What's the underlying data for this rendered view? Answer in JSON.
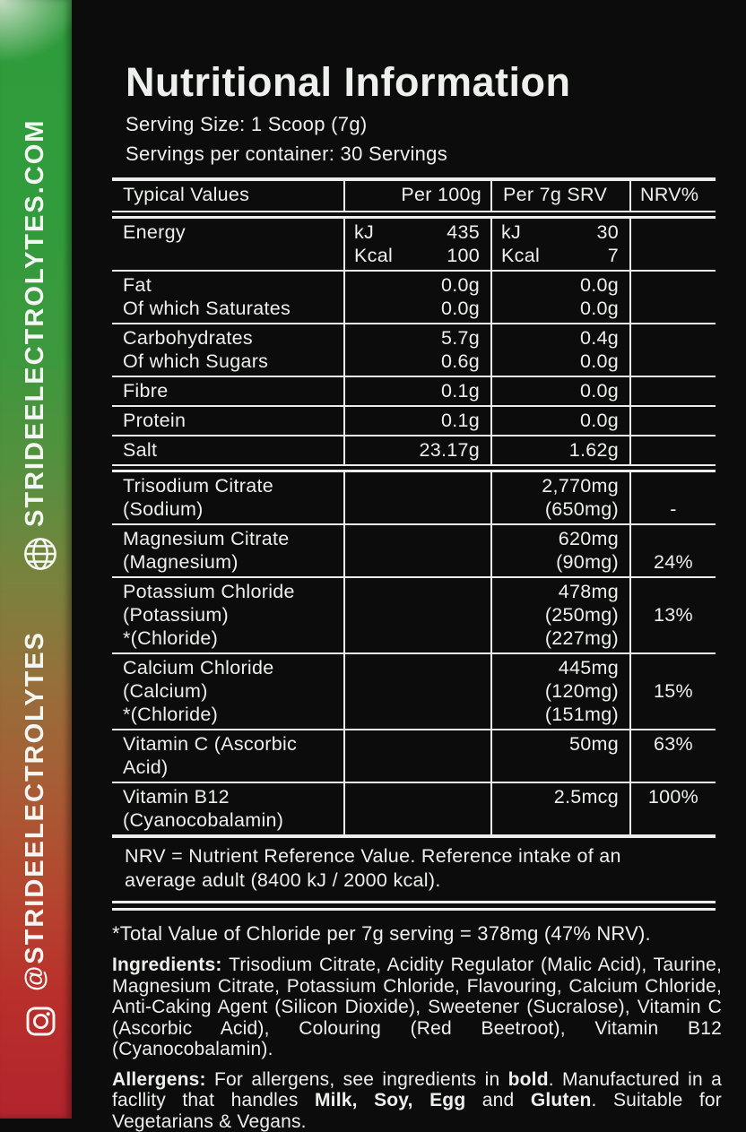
{
  "sidebar": {
    "website_text": "STRIDEELECTROLYTES.COM",
    "instagram_text": "@STRIDEELECTROLYTES",
    "gradient_top_color": "#2f9c3c",
    "gradient_mid_color": "#966f3a",
    "gradient_bottom_color": "#b2242d",
    "icons": [
      "globe-icon",
      "instagram-icon"
    ]
  },
  "header": {
    "title": "Nutritional Information",
    "serving_size": "Serving Size: 1 Scoop (7g)",
    "servings_per_container": "Servings per container: 30 Servings"
  },
  "table": {
    "headers": [
      "Typical Values",
      "Per 100g",
      "Per 7g SRV",
      "NRV%"
    ],
    "line_color": "#ececec",
    "rows": [
      {
        "label": [
          "Energy"
        ],
        "per100": [
          {
            "l": "kJ",
            "v": "435"
          },
          {
            "l": "Kcal",
            "v": "100"
          }
        ],
        "per7": [
          {
            "l": "kJ",
            "v": "30"
          },
          {
            "l": "Kcal",
            "v": "7"
          }
        ],
        "nrv": [],
        "sep": "single"
      },
      {
        "label": [
          "Fat",
          "Of which Saturates"
        ],
        "per100": [
          {
            "v": "0.0g"
          },
          {
            "v": "0.0g"
          }
        ],
        "per7": [
          {
            "v": "0.0g"
          },
          {
            "v": "0.0g"
          }
        ],
        "nrv": [],
        "sep": "single"
      },
      {
        "label": [
          "Carbohydrates",
          "Of which Sugars"
        ],
        "per100": [
          {
            "v": "5.7g"
          },
          {
            "v": "0.6g"
          }
        ],
        "per7": [
          {
            "v": "0.4g"
          },
          {
            "v": "0.0g"
          }
        ],
        "nrv": [],
        "sep": "single"
      },
      {
        "label": [
          "Fibre"
        ],
        "per100": [
          {
            "v": "0.1g"
          }
        ],
        "per7": [
          {
            "v": "0.0g"
          }
        ],
        "nrv": [],
        "sep": "single"
      },
      {
        "label": [
          "Protein"
        ],
        "per100": [
          {
            "v": "0.1g"
          }
        ],
        "per7": [
          {
            "v": "0.0g"
          }
        ],
        "nrv": [],
        "sep": "single"
      },
      {
        "label": [
          "Salt"
        ],
        "per100": [
          {
            "v": "23.17g"
          }
        ],
        "per7": [
          {
            "v": "1.62g"
          }
        ],
        "nrv": [],
        "sep": "double"
      },
      {
        "label": [
          "Trisodium Citrate",
          "(Sodium)"
        ],
        "per100": [],
        "per7": [
          {
            "v": "2,770mg"
          },
          {
            "v": "(650mg)"
          }
        ],
        "nrv": [
          "",
          "-"
        ],
        "sep": "single"
      },
      {
        "label": [
          "Magnesium Citrate",
          "(Magnesium)"
        ],
        "per100": [],
        "per7": [
          {
            "v": "620mg"
          },
          {
            "v": "(90mg)"
          }
        ],
        "nrv": [
          "",
          "24%"
        ],
        "sep": "single"
      },
      {
        "label": [
          "Potassium Chloride",
          "(Potassium)",
          "*(Chloride)"
        ],
        "per100": [],
        "per7": [
          {
            "v": "478mg"
          },
          {
            "v": "(250mg)"
          },
          {
            "v": "(227mg)"
          }
        ],
        "nrv": [
          "",
          "13%"
        ],
        "sep": "single"
      },
      {
        "label": [
          "Calcium Chloride",
          "(Calcium)",
          "*(Chloride)"
        ],
        "per100": [],
        "per7": [
          {
            "v": "445mg"
          },
          {
            "v": "(120mg)"
          },
          {
            "v": "(151mg)"
          }
        ],
        "nrv": [
          "",
          "15%"
        ],
        "sep": "single"
      },
      {
        "label": [
          "Vitamin C (Ascorbic",
          "Acid)"
        ],
        "per100": [],
        "per7": [
          {
            "v": "50mg"
          }
        ],
        "nrv": [
          "63%"
        ],
        "sep": "single"
      },
      {
        "label": [
          "Vitamin B12",
          "(Cyanocobalamin)"
        ],
        "per100": [],
        "per7": [
          {
            "v": "2.5mcg"
          }
        ],
        "nrv": [
          "100%"
        ],
        "sep": "thick"
      }
    ],
    "note_lines": [
      "NRV = Nutrient Reference Value. Reference intake of an",
      "average adult (8400 kJ / 2000 kcal)."
    ],
    "bottom_sep": "bottom"
  },
  "footnotes": {
    "chloride_note": "*Total Value of Chloride per 7g serving = 378mg (47% NRV).",
    "ingredients_segments": [
      {
        "t": "Ingredients: ",
        "b": true
      },
      {
        "t": "Trisodium Citrate, Acidity Regulator (Malic Acid), Taurine, Magnesium Citrate, Potassium Chloride, Flavouring, Calcium Chloride, Anti-Caking Agent (Silicon Dioxide), Sweetener (Sucralose), Vitamin C (Ascorbic Acid), Colouring (Red Beetroot), Vitamin B12 (Cyanocobalamin).",
        "b": false
      }
    ],
    "allergens_segments": [
      {
        "t": "Allergens: ",
        "b": true
      },
      {
        "t": "For allergens, see ingredients in ",
        "b": false
      },
      {
        "t": "bold",
        "b": true
      },
      {
        "t": ". Manufactured in a facllity that handles ",
        "b": false
      },
      {
        "t": "Milk, Soy, Egg",
        "b": true
      },
      {
        "t": " and ",
        "b": false
      },
      {
        "t": "Gluten",
        "b": true
      },
      {
        "t": ". Suitable for Vegetarians & Vegans.",
        "b": false
      }
    ]
  }
}
